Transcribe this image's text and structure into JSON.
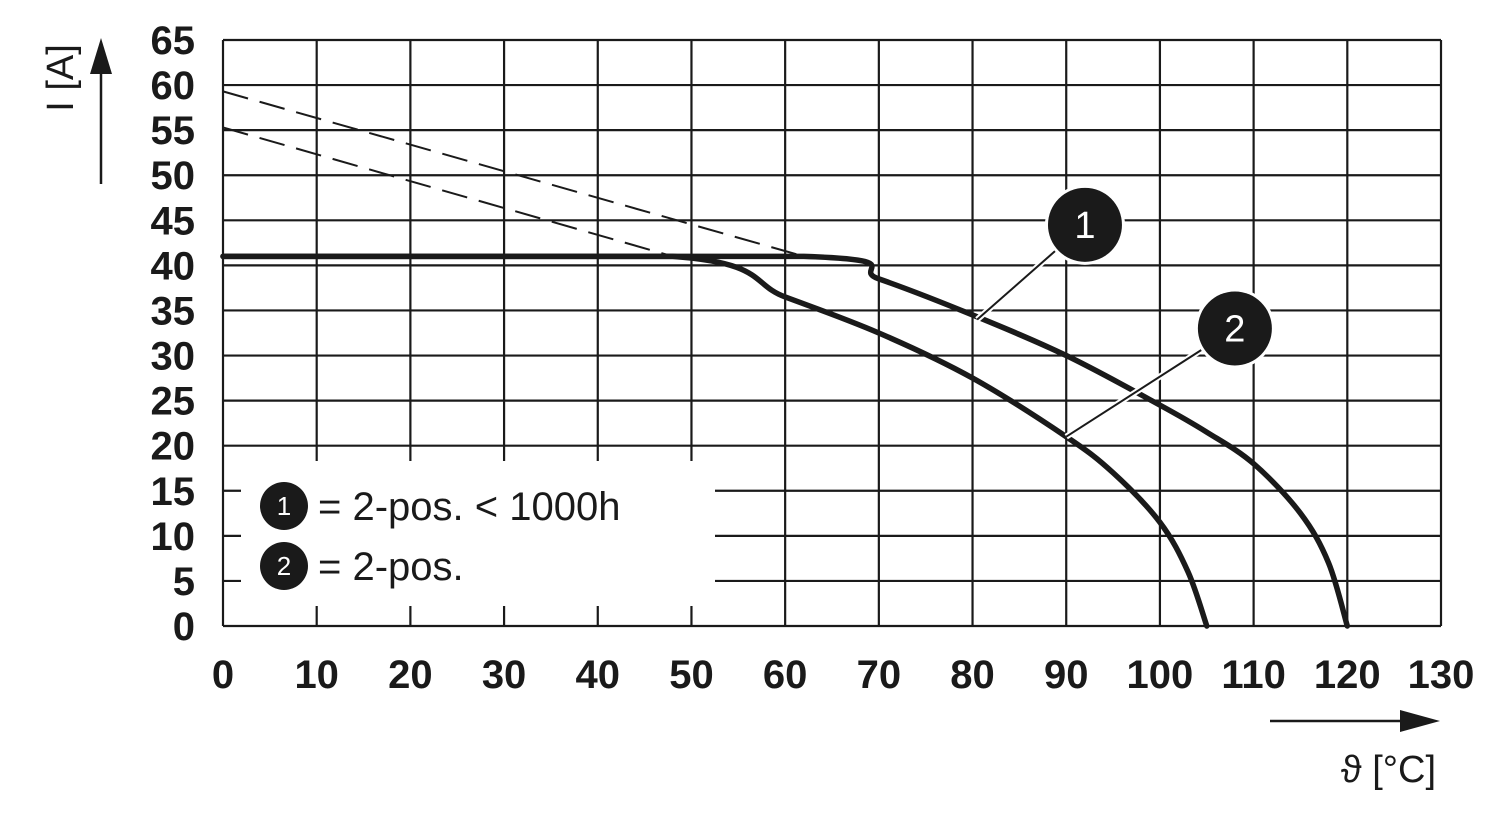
{
  "chart_data": {
    "type": "line",
    "xlabel": "ϑ [°C]",
    "ylabel": "I [A]",
    "xlim": [
      0,
      130
    ],
    "ylim": [
      0,
      65
    ],
    "xticks": [
      "0",
      "10",
      "20",
      "30",
      "40",
      "50",
      "60",
      "70",
      "80",
      "90",
      "100",
      "110",
      "120",
      "130"
    ],
    "yticks": [
      "0",
      "5",
      "10",
      "15",
      "20",
      "25",
      "30",
      "35",
      "40",
      "45",
      "50",
      "55",
      "60",
      "65"
    ],
    "grid": true,
    "series": [
      {
        "name": "2-pos. < 1000h",
        "marker_label": "1",
        "style": "solid",
        "points": [
          [
            0,
            41
          ],
          [
            62,
            41
          ],
          [
            70,
            38.5
          ],
          [
            80,
            34.5
          ],
          [
            90,
            30
          ],
          [
            100,
            24.5
          ],
          [
            105,
            21.5
          ],
          [
            110,
            18
          ],
          [
            115,
            12.5
          ],
          [
            118,
            7
          ],
          [
            120,
            0
          ]
        ]
      },
      {
        "name": "2-pos.",
        "marker_label": "2",
        "style": "solid",
        "points": [
          [
            0,
            41
          ],
          [
            48,
            41
          ],
          [
            60,
            36.5
          ],
          [
            70,
            32.5
          ],
          [
            80,
            27.5
          ],
          [
            90,
            21
          ],
          [
            95,
            17
          ],
          [
            100,
            11.5
          ],
          [
            103,
            6
          ],
          [
            105,
            0
          ]
        ]
      },
      {
        "style": "dashed",
        "points": [
          [
            0,
            59.3
          ],
          [
            62,
            41
          ]
        ]
      },
      {
        "style": "dashed",
        "points": [
          [
            0,
            55.3
          ],
          [
            48,
            41
          ]
        ]
      }
    ],
    "callouts": [
      {
        "label": "1",
        "target": [
          80.5,
          34
        ],
        "marker_at": [
          92,
          44.5
        ]
      },
      {
        "label": "2",
        "target": [
          90,
          21
        ],
        "marker_at": [
          108,
          33
        ]
      }
    ],
    "legend": {
      "position": "bottom-left",
      "entries": [
        {
          "marker": "1",
          "text": "= 2-pos. < 1000h"
        },
        {
          "marker": "2",
          "text": "= 2-pos."
        }
      ]
    }
  }
}
